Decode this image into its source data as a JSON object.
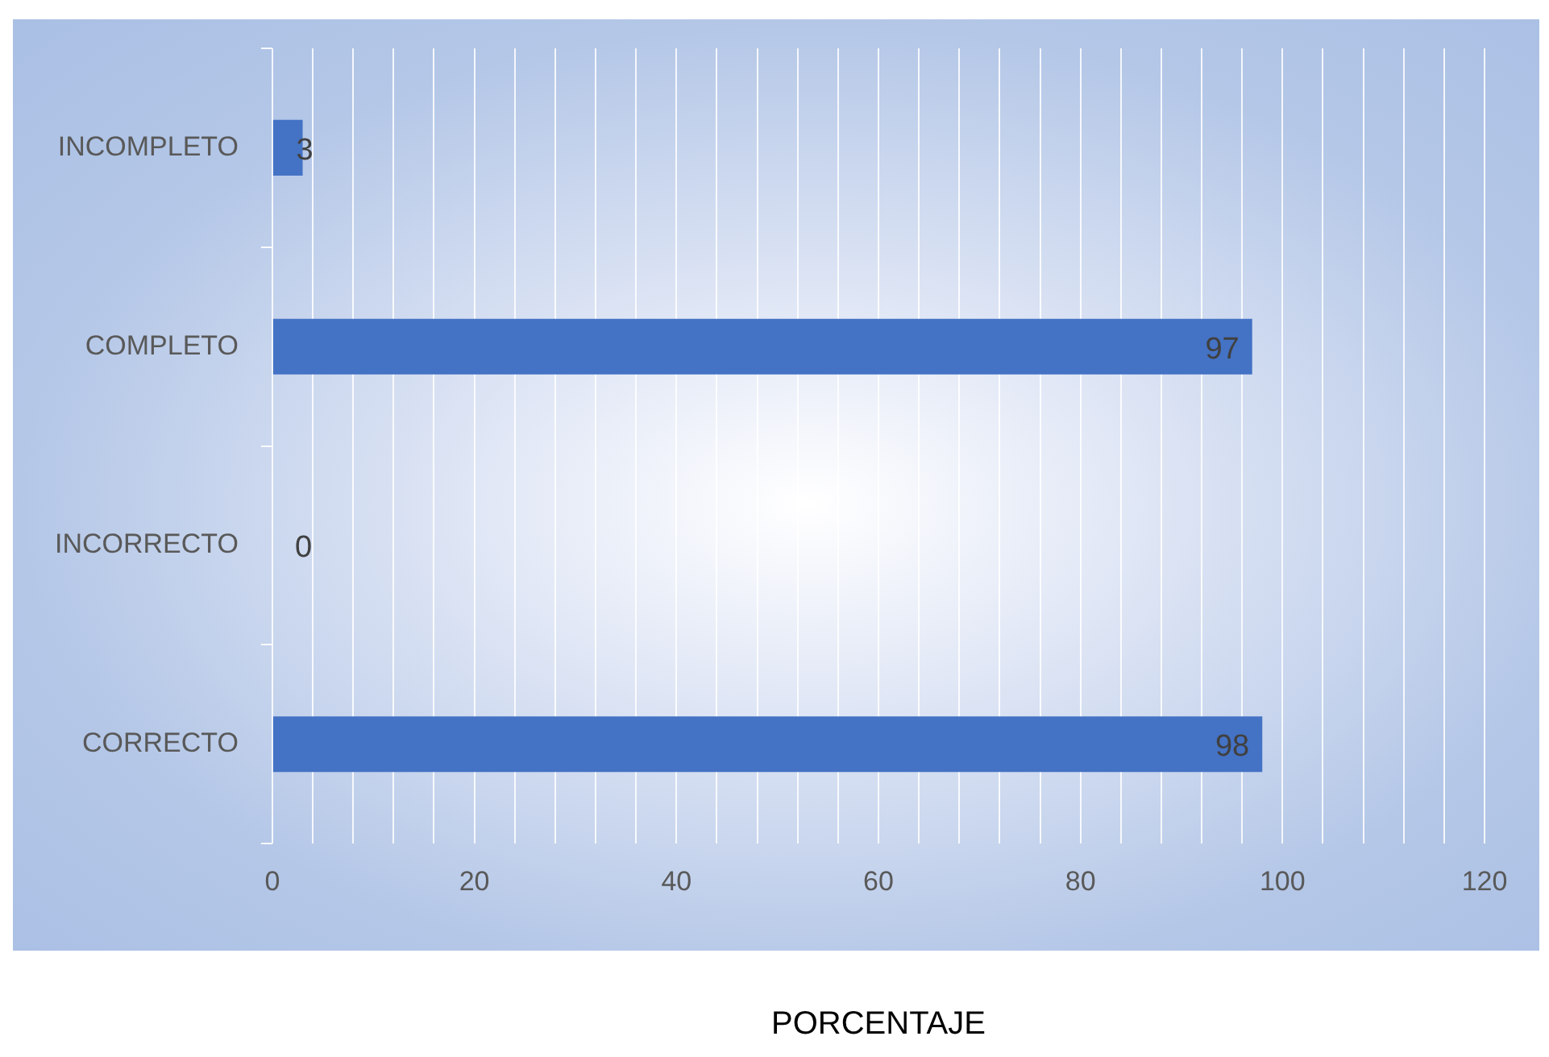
{
  "chart_data": {
    "type": "bar",
    "orientation": "horizontal",
    "xlabel": "PORCENTAJE",
    "categories": [
      "INCOMPLETO",
      "COMPLETO",
      "INCORRECTO",
      "CORRECTO"
    ],
    "values": [
      3,
      97,
      0,
      98
    ],
    "color": "#4472c4",
    "data_labels": true,
    "xlim": [
      0,
      120
    ],
    "xticks": [
      0,
      {
        "value": 4,
        "label": null
      },
      {
        "value": 8,
        "label": null
      },
      {
        "value": 12,
        "label": null
      },
      {
        "value": 16,
        "label": null
      },
      20,
      {
        "value": 24,
        "label": null
      },
      {
        "value": 28,
        "label": null
      },
      {
        "value": 32,
        "label": null
      },
      {
        "value": 36,
        "label": null
      },
      40,
      {
        "value": 44,
        "label": null
      },
      {
        "value": 48,
        "label": null
      },
      {
        "value": 52,
        "label": null
      },
      {
        "value": 56,
        "label": null
      },
      60,
      {
        "value": 64,
        "label": null
      },
      {
        "value": 68,
        "label": null
      },
      {
        "value": 72,
        "label": null
      },
      {
        "value": 76,
        "label": null
      },
      80,
      {
        "value": 84,
        "label": null
      },
      {
        "value": 88,
        "label": null
      },
      {
        "value": 92,
        "label": null
      },
      {
        "value": 96,
        "label": null
      },
      100,
      {
        "value": 104,
        "label": null
      },
      {
        "value": 108,
        "label": null
      },
      {
        "value": 112,
        "label": null
      },
      {
        "value": 116,
        "label": null
      },
      120
    ],
    "grid": "x",
    "legend": false
  }
}
